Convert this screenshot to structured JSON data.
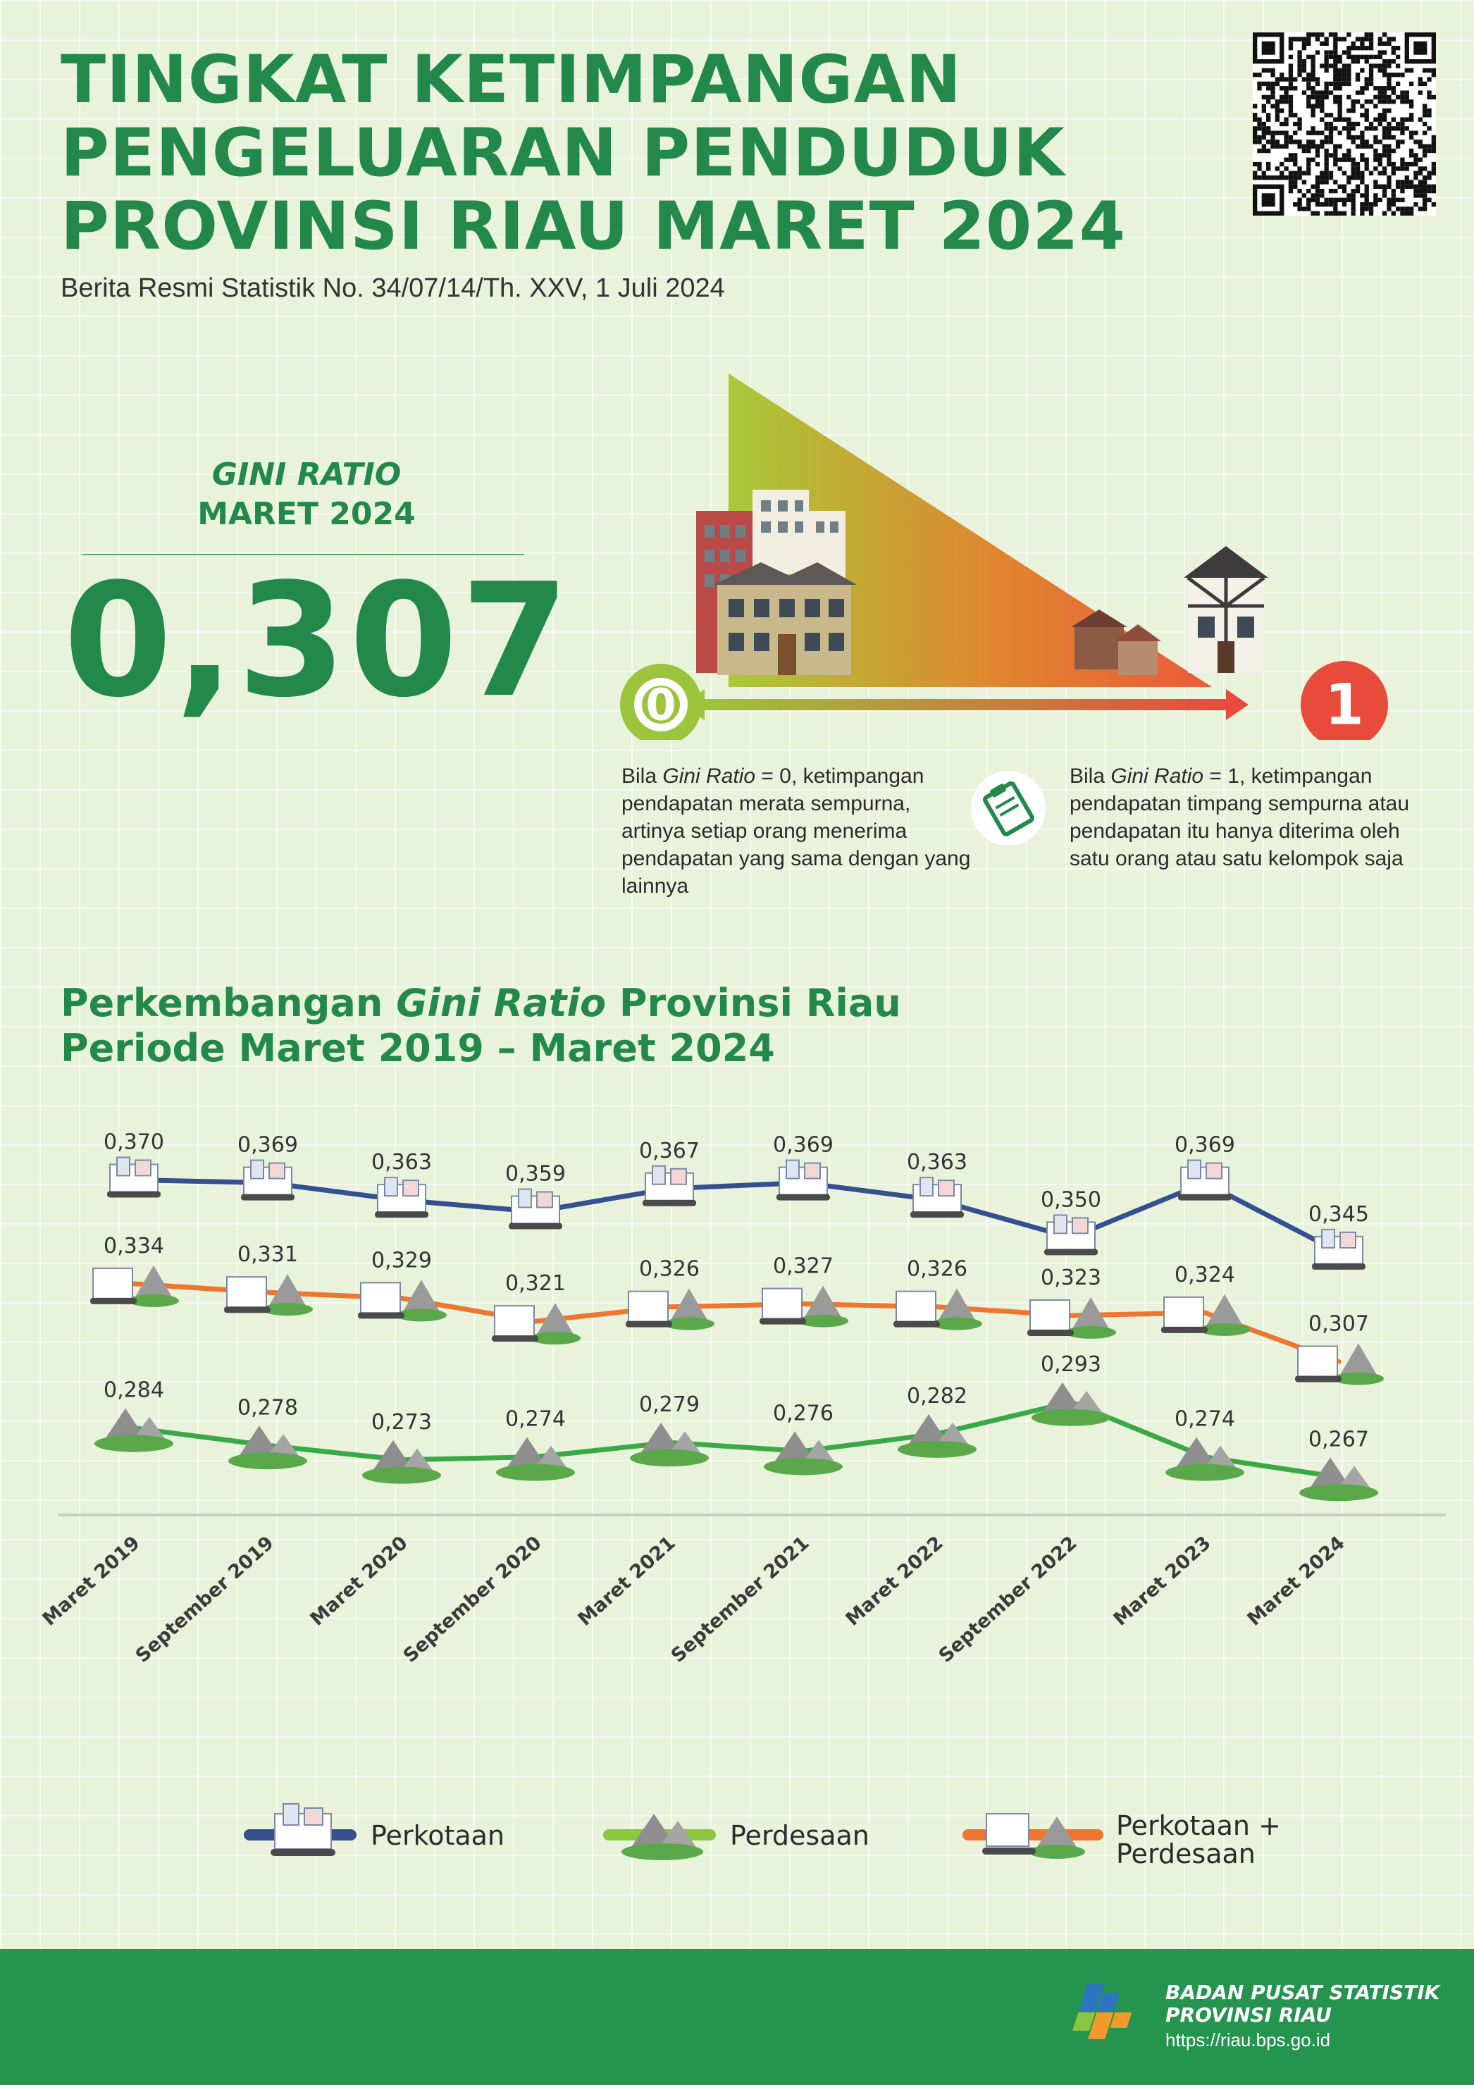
{
  "header": {
    "title_line1": "TINGKAT KETIMPANGAN",
    "title_line2": "PENGELUARAN PENDUDUK",
    "title_line3": "PROVINSI RIAU MARET 2024",
    "subtitle": "Berita Resmi Statistik No. 34/07/14/Th. XXV, 1 Juli 2024"
  },
  "gini_summary": {
    "label_italic": "GINI RATIO",
    "label_period": "MARET 2024",
    "value": "0,307"
  },
  "scale": {
    "min_label": "0",
    "max_label": "1",
    "zero_prefix": "Bila ",
    "zero_italic": "Gini Ratio",
    "zero_text": " = 0, ketimpangan pendapatan merata sempurna, artinya setiap orang menerima pendapatan yang sama dengan yang lainnya",
    "one_prefix": "Bila ",
    "one_italic": "Gini Ratio",
    "one_text": " = 1, ketimpangan pendapatan timpang sempurna atau pendapatan itu hanya diterima oleh satu orang atau satu kelompok saja"
  },
  "section": {
    "title_part1": "Perkembangan ",
    "title_italic": "Gini Ratio",
    "title_part2": " Provinsi Riau",
    "title_line2": "Periode Maret 2019 – Maret 2024"
  },
  "chart_data": {
    "type": "line",
    "categories": [
      "Maret 2019",
      "September 2019",
      "Maret 2020",
      "September 2020",
      "Maret 2021",
      "September 2021",
      "Maret 2022",
      "September 2022",
      "Maret 2023",
      "Maret 2024"
    ],
    "series": [
      {
        "name": "Perkotaan",
        "color": "#34508f",
        "values": [
          0.37,
          0.369,
          0.363,
          0.359,
          0.367,
          0.369,
          0.363,
          0.35,
          0.369,
          0.345
        ],
        "labels": [
          "0,370",
          "0,369",
          "0,363",
          "0,359",
          "0,367",
          "0,369",
          "0,363",
          "0,350",
          "0,369",
          "0,345"
        ]
      },
      {
        "name": "Perkotaan + Perdesaan",
        "color": "#ef7630",
        "values": [
          0.334,
          0.331,
          0.329,
          0.321,
          0.326,
          0.327,
          0.326,
          0.323,
          0.324,
          0.307
        ],
        "labels": [
          "0,334",
          "0,331",
          "0,329",
          "0,321",
          "0,326",
          "0,327",
          "0,326",
          "0,323",
          "0,324",
          "0,307"
        ]
      },
      {
        "name": "Perdesaan",
        "color": "#3aa847",
        "values": [
          0.284,
          0.278,
          0.273,
          0.274,
          0.279,
          0.276,
          0.282,
          0.293,
          0.274,
          0.267
        ],
        "labels": [
          "0,284",
          "0,278",
          "0,273",
          "0,274",
          "0,279",
          "0,276",
          "0,282",
          "0,293",
          "0,274",
          "0,267"
        ]
      }
    ],
    "legend": [
      "Perkotaan",
      "Perdesaan",
      "Perkotaan +",
      "Perdesaan"
    ]
  },
  "footer": {
    "org_line1": "BADAN PUSAT STATISTIK",
    "org_line2": "PROVINSI RIAU",
    "url": "https://riau.bps.go.id"
  },
  "colors": {
    "brand_green": "#22894a",
    "footer_green": "#25944f",
    "urban_blue": "#34508f",
    "rural_green": "#3aa847",
    "total_orange": "#ef7630",
    "zero_circle": "#9cc43c",
    "one_circle": "#e84a3c"
  },
  "icons": [
    "qr-code-icon",
    "city-buildings-icon",
    "houses-icon",
    "clipboard-icon",
    "bps-logo-icon"
  ]
}
